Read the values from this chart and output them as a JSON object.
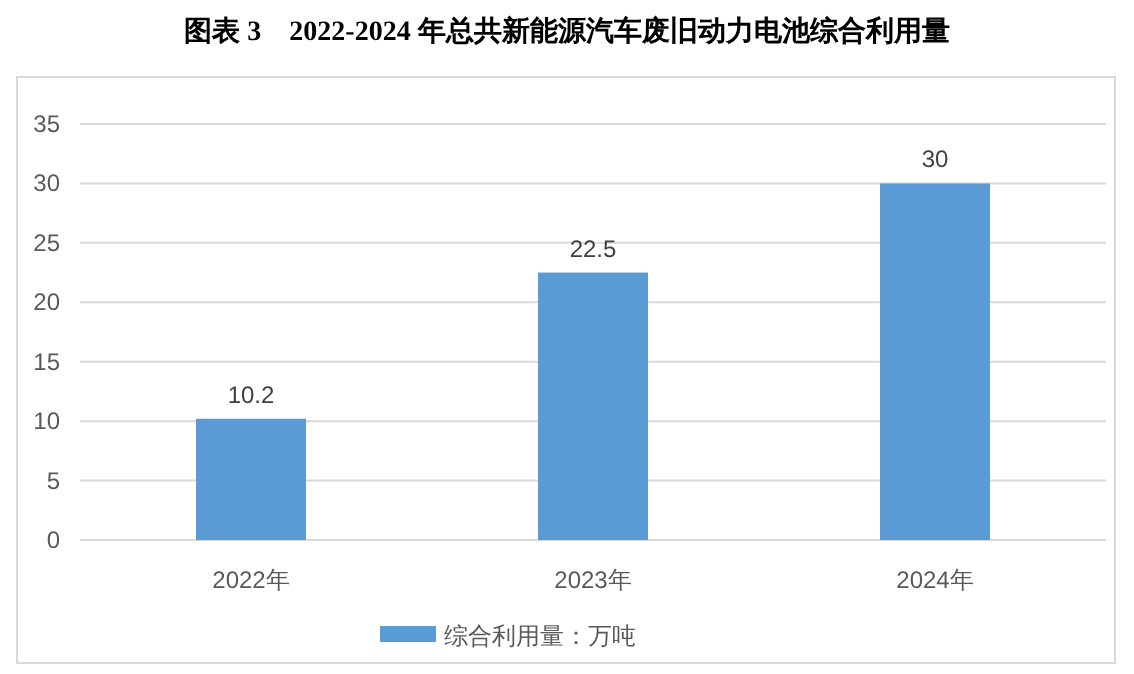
{
  "chart_data": {
    "type": "bar",
    "title": "图表 3　2022-2024 年总共新能源汽车废旧动力电池综合利用量",
    "categories": [
      "2022年",
      "2023年",
      "2024年"
    ],
    "series": [
      {
        "name": "综合利用量：万吨",
        "color": "#5b9bd5",
        "values": [
          10.2,
          22.5,
          30
        ]
      }
    ],
    "ylim": [
      0,
      35
    ],
    "yticks": [
      0,
      5,
      10,
      15,
      20,
      25,
      30,
      35
    ],
    "grid": "y",
    "legend": "bottom",
    "data_labels": true
  }
}
